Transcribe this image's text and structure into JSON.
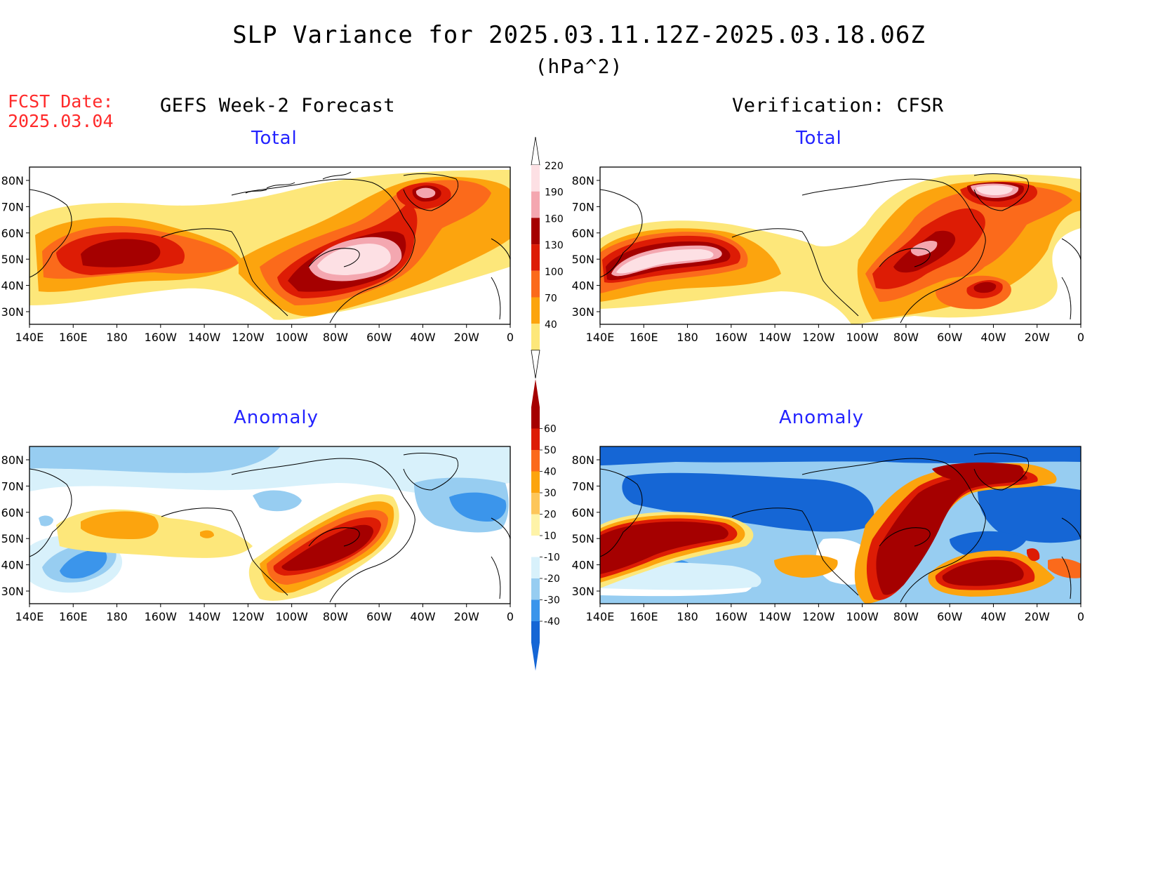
{
  "title": "SLP Variance for 2025.03.11.12Z-2025.03.18.06Z",
  "units": "(hPa^2)",
  "fcst_date_label": "FCST Date:",
  "fcst_date_value": "2025.03.04",
  "left_column_title": "GEFS Week-2 Forecast",
  "right_column_title": "Verification: CFSR",
  "panels": {
    "forecast_total": {
      "title": "Total"
    },
    "verification_total": {
      "title": "Total"
    },
    "forecast_anomaly": {
      "title": "Anomaly"
    },
    "verification_anomaly": {
      "title": "Anomaly"
    }
  },
  "x_ticks": [
    "140E",
    "160E",
    "180",
    "160W",
    "140W",
    "120W",
    "100W",
    "80W",
    "60W",
    "40W",
    "20W",
    "0"
  ],
  "y_ticks": [
    "80N",
    "70N",
    "60N",
    "50N",
    "40N",
    "30N"
  ],
  "total_colorbar": {
    "labels": [
      "220",
      "190",
      "160",
      "130",
      "100",
      "70",
      "40"
    ],
    "colors": [
      "#fde0e4",
      "#f4a7b0",
      "#a50000",
      "#dd1c05",
      "#fb6a1b",
      "#fca40e",
      "#fde77a"
    ]
  },
  "anomaly_colorbar": {
    "labels": [
      "60",
      "50",
      "40",
      "30",
      "20",
      "10",
      "-10",
      "-20",
      "-30",
      "-40"
    ],
    "colors": [
      "#a50000",
      "#dd1c05",
      "#fb6a1b",
      "#fca40e",
      "#fdc65a",
      "#fef3a8",
      "#ffffff",
      "#d8f1fb",
      "#97cdf1",
      "#3b95eb",
      "#1566d5"
    ]
  }
}
